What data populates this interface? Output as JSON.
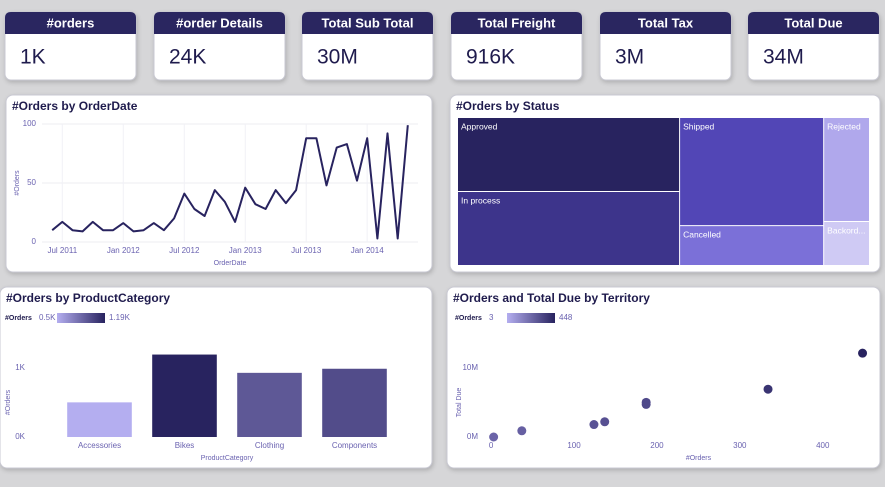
{
  "kpis": [
    {
      "title": "#orders",
      "value": "1K"
    },
    {
      "title": "#order Details",
      "value": "24K"
    },
    {
      "title": "Total Sub Total",
      "value": "30M"
    },
    {
      "title": "Total Freight",
      "value": "916K"
    },
    {
      "title": "Total Tax",
      "value": "3M"
    },
    {
      "title": "Total Due",
      "value": "34M"
    }
  ],
  "chart_data": [
    {
      "type": "line",
      "title": "#Orders by OrderDate",
      "x_label": "OrderDate",
      "y_label": "#Orders",
      "x": [
        "2011-06",
        "2011-07",
        "2011-08",
        "2011-09",
        "2011-10",
        "2011-11",
        "2011-12",
        "2012-01",
        "2012-02",
        "2012-03",
        "2012-04",
        "2012-05",
        "2012-06",
        "2012-07",
        "2012-08",
        "2012-09",
        "2012-10",
        "2012-11",
        "2012-12",
        "2013-01",
        "2013-02",
        "2013-03",
        "2013-04",
        "2013-05",
        "2013-06",
        "2013-07",
        "2013-08",
        "2013-09",
        "2013-10",
        "2013-11",
        "2013-12",
        "2014-01",
        "2014-02",
        "2014-03",
        "2014-04",
        "2014-05"
      ],
      "values": [
        10,
        17,
        10,
        9,
        17,
        10,
        10,
        16,
        9,
        10,
        16,
        10,
        20,
        41,
        28,
        22,
        44,
        34,
        17,
        46,
        32,
        28,
        44,
        33,
        44,
        88,
        88,
        48,
        80,
        83,
        52,
        88,
        3,
        92,
        3,
        99
      ],
      "color": "#28235f",
      "xlim": [
        "2011-05",
        "2014-06"
      ],
      "xticks": [
        {
          "value": "2011-07",
          "label": "Jul 2011"
        },
        {
          "value": "2012-01",
          "label": "Jan 2012"
        },
        {
          "value": "2012-07",
          "label": "Jul 2012"
        },
        {
          "value": "2013-01",
          "label": "Jan 2013"
        },
        {
          "value": "2013-07",
          "label": "Jul 2013"
        },
        {
          "value": "2014-01",
          "label": "Jan 2014"
        }
      ],
      "ylim": [
        0,
        100
      ],
      "yticks": [
        0,
        50,
        100
      ],
      "grid": true
    },
    {
      "type": "treemap",
      "title": "#Orders by Status",
      "categories": [
        "Approved",
        "In process",
        "Shipped",
        "Cancelled",
        "Rejected",
        "Backord..."
      ],
      "values": [
        269,
        269,
        255,
        94,
        78,
        33
      ],
      "colors": [
        "#28235f",
        "#3d348b",
        "#5246b6",
        "#7b70d8",
        "#b0a8ec",
        "#cfcaf4"
      ]
    },
    {
      "type": "bar",
      "title": "#Orders by ProductCategory",
      "x_label": "ProductCategory",
      "y_label": "#Orders",
      "categories": [
        "Accessories",
        "Bikes",
        "Clothing",
        "Components"
      ],
      "values": [
        500,
        1190,
        926,
        985
      ],
      "ylim": [
        0,
        1400
      ],
      "yticks": [
        {
          "value": 0,
          "label": "0K"
        },
        {
          "value": 1000,
          "label": "1K"
        }
      ],
      "grid": false,
      "color_scale": {
        "title": "#Orders",
        "min": {
          "value": 500,
          "label": "0.5K"
        },
        "max": {
          "value": 1190,
          "label": "1.19K"
        },
        "colors": [
          "#b4aef0",
          "#28235f"
        ]
      }
    },
    {
      "type": "scatter",
      "title": "#Orders and Total Due by Territory",
      "x_label": "#Orders",
      "y_label": "Total Due",
      "x": [
        3,
        37,
        124,
        137,
        187,
        187,
        334,
        448
      ],
      "values": [
        0,
        900000,
        1800000,
        2200000,
        5000000,
        4700000,
        6900000,
        12100000
      ],
      "xlim": [
        -5,
        457
      ],
      "xticks": [
        0,
        100,
        200,
        300,
        400
      ],
      "ylim": [
        0,
        14000000
      ],
      "yticks": [
        {
          "value": 0,
          "label": "0M"
        },
        {
          "value": 10000000,
          "label": "10M"
        }
      ],
      "grid": false,
      "color_scale": {
        "title": "#Orders",
        "min": 3,
        "max": 448,
        "colors": [
          "#b4aef0",
          "#28235f"
        ]
      }
    }
  ]
}
